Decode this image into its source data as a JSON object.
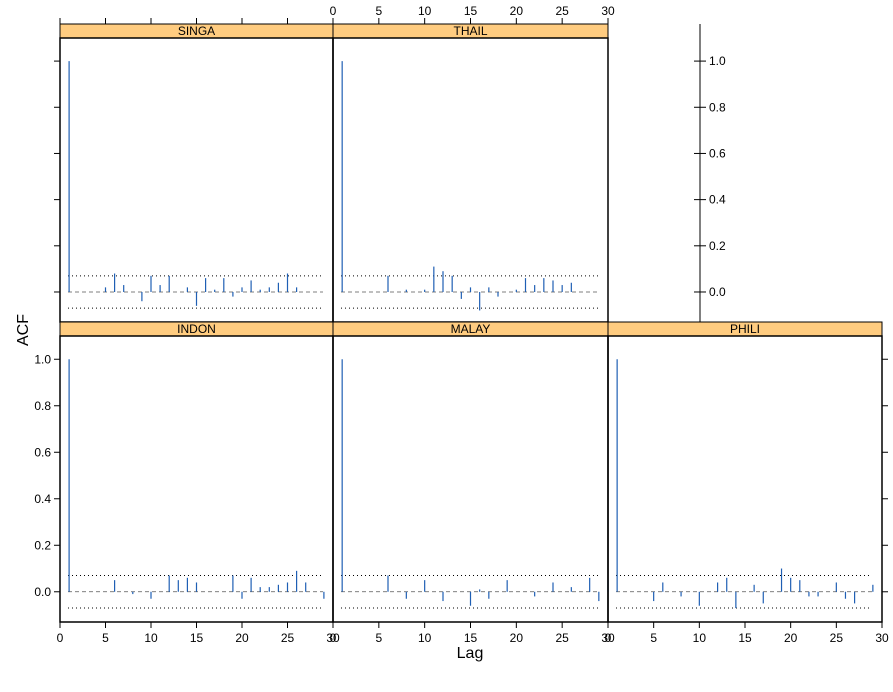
{
  "chart_data": {
    "type": "bar",
    "xlabel": "Lag",
    "ylabel": "ACF",
    "xlim": [
      0,
      30
    ],
    "ylim": [
      -0.13,
      1.1
    ],
    "x_ticks": [
      0,
      5,
      10,
      15,
      20,
      25,
      30
    ],
    "y_ticks": [
      0.0,
      0.2,
      0.4,
      0.6,
      0.8,
      1.0
    ],
    "confidence_band": [
      -0.07,
      0.07
    ],
    "bar_color": "#1f5fb4",
    "strip_color": "#ffcc80",
    "panels": [
      {
        "name": "SINGA",
        "values": [
          1.0,
          0.0,
          0.0,
          0.0,
          0.02,
          0.08,
          0.03,
          0.0,
          -0.04,
          0.07,
          0.03,
          0.07,
          0.0,
          0.02,
          -0.06,
          0.06,
          0.01,
          0.06,
          -0.02,
          0.02,
          0.05,
          0.01,
          0.02,
          0.04,
          0.08,
          0.02,
          0.0,
          0.0,
          0.0
        ]
      },
      {
        "name": "THAIL",
        "values": [
          1.0,
          0.0,
          0.0,
          0.0,
          0.0,
          0.07,
          0.0,
          0.01,
          0.0,
          0.01,
          0.11,
          0.09,
          0.07,
          -0.03,
          0.02,
          -0.08,
          0.02,
          -0.02,
          0.0,
          0.01,
          0.06,
          0.03,
          0.06,
          0.05,
          0.03,
          0.04,
          0.0,
          0.0,
          0.0
        ]
      },
      {
        "name": "INDON",
        "values": [
          1.0,
          0.0,
          0.0,
          0.0,
          0.0,
          0.05,
          0.0,
          -0.01,
          0.0,
          -0.03,
          0.0,
          0.07,
          0.05,
          0.06,
          0.04,
          0.0,
          0.0,
          0.0,
          0.07,
          -0.03,
          0.06,
          0.02,
          0.02,
          0.03,
          0.04,
          0.09,
          0.04,
          0.0,
          -0.03,
          0.0
        ]
      },
      {
        "name": "MALAY",
        "values": [
          1.0,
          0.0,
          0.0,
          0.0,
          0.0,
          0.07,
          0.0,
          -0.03,
          0.0,
          0.05,
          0.0,
          -0.04,
          0.0,
          0.0,
          -0.06,
          0.01,
          -0.03,
          0.0,
          0.05,
          0.0,
          0.0,
          -0.02,
          0.0,
          0.04,
          0.0,
          0.02,
          0.0,
          0.06,
          -0.04,
          0.05
        ]
      },
      {
        "name": "PHILI",
        "values": [
          1.0,
          0.0,
          0.0,
          0.0,
          -0.04,
          0.04,
          0.0,
          -0.02,
          0.0,
          -0.06,
          0.0,
          0.04,
          0.06,
          -0.07,
          0.0,
          0.03,
          -0.05,
          0.0,
          0.1,
          0.06,
          0.05,
          -0.02,
          -0.02,
          0.0,
          0.04,
          -0.03,
          -0.05,
          0.0,
          0.03
        ]
      }
    ]
  }
}
